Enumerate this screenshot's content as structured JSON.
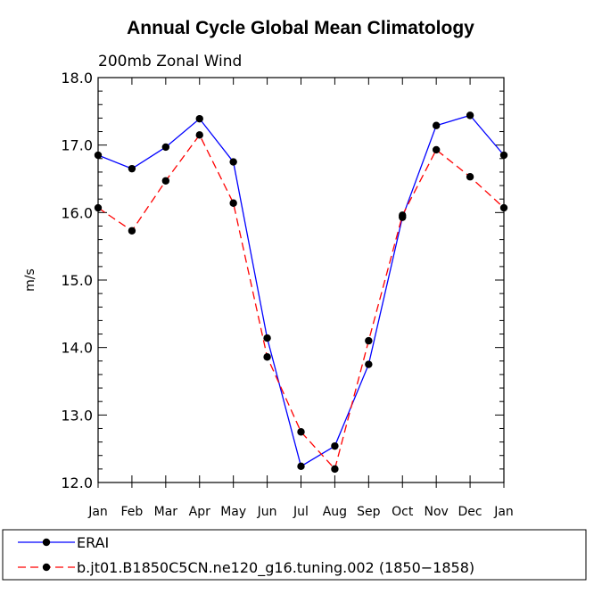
{
  "chart_data": {
    "type": "line",
    "title": "Annual Cycle Global Mean Climatology",
    "subtitle": "200mb Zonal Wind",
    "xlabel": "",
    "ylabel": "m/s",
    "categories": [
      "Jan",
      "Feb",
      "Mar",
      "Apr",
      "May",
      "Jun",
      "Jul",
      "Aug",
      "Sep",
      "Oct",
      "Nov",
      "Dec",
      "Jan"
    ],
    "ylim": [
      12.0,
      18.0
    ],
    "yticks": [
      "12.0",
      "13.0",
      "14.0",
      "15.0",
      "16.0",
      "17.0",
      "18.0"
    ],
    "grid": false,
    "legend_position": "bottom",
    "series": [
      {
        "name": "ERAI",
        "color": "#0000ff",
        "dash": "solid",
        "marker": "filled-circle",
        "values": [
          16.85,
          16.65,
          16.97,
          17.39,
          16.75,
          14.14,
          12.24,
          12.54,
          13.75,
          15.93,
          17.29,
          17.44,
          16.85
        ]
      },
      {
        "name": "b.jt01.B1850C5CN.ne120_g16.tuning.002 (1850−1858)",
        "color": "#ff0000",
        "dash": "dashed",
        "marker": "filled-circle",
        "values": [
          16.07,
          15.73,
          16.47,
          17.15,
          16.14,
          13.86,
          12.75,
          12.2,
          14.1,
          15.96,
          16.93,
          16.53,
          16.07
        ]
      }
    ]
  }
}
